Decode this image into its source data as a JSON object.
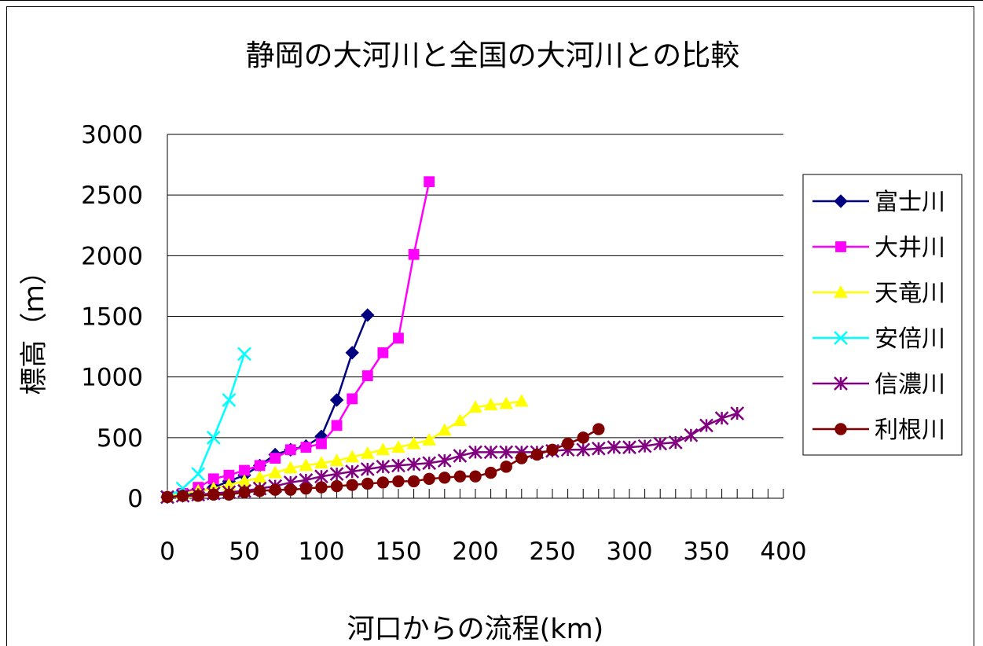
{
  "chart_data": {
    "type": "line",
    "title": "静岡の大河川と全国の大河川との比較",
    "xlabel": "河口からの流程(km)",
    "ylabel": "標高（ｍ）",
    "xlim": [
      0,
      400
    ],
    "ylim": [
      0,
      3000
    ],
    "xticks": [
      "0",
      "50",
      "100",
      "150",
      "200",
      "250",
      "300",
      "350",
      "400"
    ],
    "yticks": [
      "0",
      "500",
      "1000",
      "1500",
      "2000",
      "2500",
      "3000"
    ],
    "grid": "horizontal",
    "legend_position": "right",
    "series": [
      {
        "name": "富士川",
        "color": "#000080",
        "marker": "diamond",
        "x": [
          0,
          10,
          20,
          30,
          40,
          50,
          60,
          70,
          80,
          90,
          100,
          110,
          120,
          130
        ],
        "y": [
          10,
          20,
          50,
          90,
          140,
          190,
          270,
          360,
          400,
          430,
          510,
          810,
          1200,
          1510
        ]
      },
      {
        "name": "大井川",
        "color": "#ff00ff",
        "marker": "square",
        "x": [
          0,
          10,
          20,
          30,
          40,
          50,
          60,
          70,
          80,
          90,
          100,
          110,
          120,
          130,
          140,
          150,
          160,
          170
        ],
        "y": [
          10,
          40,
          90,
          160,
          190,
          230,
          270,
          330,
          400,
          420,
          450,
          600,
          820,
          1010,
          1200,
          1320,
          2010,
          2610
        ],
        "gap": "straight"
      },
      {
        "name": "天竜川",
        "color": "#ffff00",
        "marker": "triangle",
        "x": [
          0,
          10,
          20,
          30,
          40,
          50,
          60,
          70,
          80,
          90,
          100,
          110,
          120,
          130,
          140,
          150,
          160,
          170,
          180,
          190,
          200,
          210,
          220,
          230
        ],
        "y": [
          10,
          40,
          60,
          80,
          110,
          140,
          170,
          210,
          250,
          270,
          290,
          310,
          340,
          370,
          400,
          420,
          450,
          480,
          560,
          640,
          750,
          770,
          780,
          800
        ]
      },
      {
        "name": "安倍川",
        "color": "#00ffff",
        "marker": "x",
        "x": [
          0,
          10,
          20,
          30,
          40,
          50
        ],
        "y": [
          10,
          80,
          200,
          500,
          810,
          1190
        ]
      },
      {
        "name": "信濃川",
        "color": "#800080",
        "marker": "asterisk",
        "x": [
          0,
          10,
          20,
          30,
          40,
          50,
          60,
          70,
          80,
          90,
          100,
          110,
          120,
          130,
          140,
          150,
          160,
          170,
          180,
          190,
          200,
          210,
          220,
          230,
          240,
          250,
          260,
          270,
          280,
          290,
          300,
          310,
          320,
          330,
          340,
          350,
          360,
          370
        ],
        "y": [
          10,
          20,
          30,
          40,
          50,
          60,
          80,
          100,
          130,
          150,
          180,
          200,
          220,
          240,
          260,
          270,
          280,
          290,
          310,
          350,
          380,
          380,
          380,
          380,
          380,
          390,
          400,
          400,
          410,
          420,
          420,
          430,
          450,
          460,
          520,
          600,
          660,
          700
        ]
      },
      {
        "name": "利根川",
        "color": "#800000",
        "marker": "circle",
        "x": [
          0,
          10,
          20,
          30,
          40,
          50,
          60,
          70,
          80,
          90,
          100,
          110,
          120,
          130,
          140,
          150,
          160,
          170,
          180,
          190,
          200,
          210,
          220,
          230,
          240,
          250,
          260,
          270,
          280
        ],
        "y": [
          10,
          20,
          20,
          30,
          30,
          50,
          60,
          70,
          70,
          80,
          90,
          100,
          110,
          120,
          130,
          140,
          140,
          160,
          170,
          180,
          180,
          210,
          260,
          330,
          360,
          400,
          450,
          500,
          570
        ]
      }
    ]
  }
}
